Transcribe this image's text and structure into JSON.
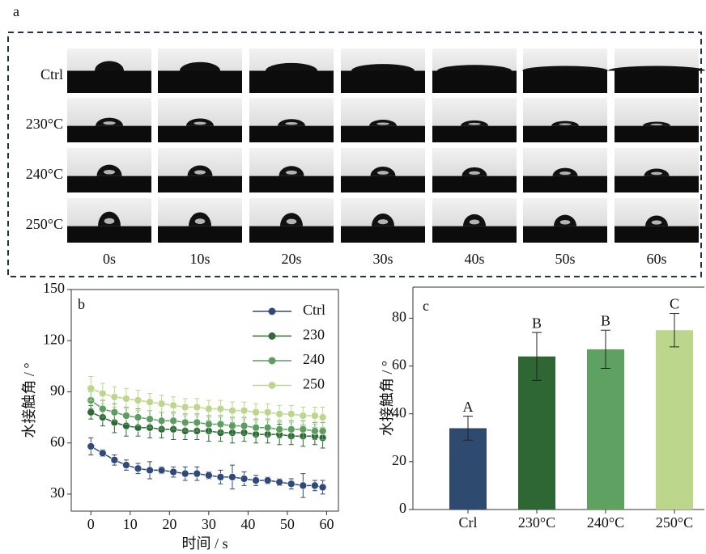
{
  "panel_a": {
    "label": "a",
    "rows": [
      "Ctrl",
      "230°C",
      "240°C",
      "250°C"
    ],
    "columns": [
      "0s",
      "10s",
      "20s",
      "30s",
      "40s",
      "50s",
      "60s"
    ]
  },
  "chart_data": [
    {
      "type": "line",
      "label": "b",
      "x_label": "时间 / s",
      "y_label": "水接触角 / °",
      "xlim": [
        -5,
        63
      ],
      "xticks": [
        0,
        10,
        20,
        30,
        40,
        50,
        60
      ],
      "ylim": [
        20,
        150
      ],
      "yticks": [
        30,
        60,
        90,
        120,
        150
      ],
      "legend": "upper right",
      "x": [
        0,
        3,
        6,
        9,
        12,
        15,
        18,
        21,
        24,
        27,
        30,
        33,
        36,
        39,
        42,
        45,
        48,
        51,
        54,
        57,
        59
      ],
      "series": [
        {
          "name": "Ctrl",
          "color": "#2f4a7a",
          "values": [
            58,
            54,
            50,
            47,
            45,
            44,
            44,
            43,
            42,
            42,
            41,
            40,
            40,
            39,
            38,
            38,
            37,
            36,
            35,
            35,
            34
          ],
          "errors": [
            5,
            2,
            3,
            3,
            3,
            5,
            2,
            3,
            4,
            4,
            2,
            4,
            7,
            4,
            3,
            2,
            2,
            3,
            7,
            3,
            4
          ]
        },
        {
          "name": "230",
          "color": "#2d6a35",
          "values": [
            78,
            75,
            72,
            70,
            69,
            69,
            68,
            68,
            67,
            67,
            67,
            66,
            66,
            66,
            65,
            65,
            65,
            64,
            64,
            64,
            63
          ],
          "errors": [
            4,
            5,
            6,
            6,
            5,
            6,
            5,
            6,
            5,
            5,
            6,
            5,
            6,
            5,
            5,
            5,
            6,
            5,
            6,
            5,
            6
          ]
        },
        {
          "name": "240",
          "color": "#5c9e60",
          "values": [
            85,
            80,
            78,
            76,
            75,
            74,
            73,
            73,
            72,
            72,
            71,
            71,
            70,
            70,
            69,
            69,
            68,
            68,
            68,
            67,
            67
          ],
          "errors": [
            5,
            5,
            5,
            5,
            5,
            5,
            5,
            5,
            5,
            5,
            5,
            5,
            5,
            5,
            5,
            5,
            5,
            5,
            5,
            5,
            5
          ]
        },
        {
          "name": "250",
          "color": "#bcd78c",
          "values": [
            92,
            89,
            87,
            86,
            85,
            84,
            83,
            82,
            81,
            81,
            80,
            80,
            79,
            79,
            78,
            78,
            77,
            77,
            76,
            76,
            75
          ],
          "errors": [
            7,
            6,
            6,
            6,
            6,
            5,
            5,
            5,
            5,
            5,
            5,
            5,
            5,
            5,
            5,
            5,
            5,
            5,
            5,
            5,
            6
          ]
        }
      ]
    },
    {
      "type": "bar",
      "label": "c",
      "y_label": "水接触角 / °",
      "categories": [
        "Crl",
        "230°C",
        "240°C",
        "250°C"
      ],
      "values": [
        34,
        64,
        67,
        75
      ],
      "errors": [
        5,
        10,
        8,
        7
      ],
      "group_labels": [
        "A",
        "B",
        "B",
        "C"
      ],
      "colors": [
        "#2f4a6f",
        "#2e6634",
        "#5fa160",
        "#bcd68c"
      ],
      "ylim": [
        0,
        93
      ],
      "yticks": [
        0,
        20,
        40,
        60,
        80
      ]
    }
  ]
}
